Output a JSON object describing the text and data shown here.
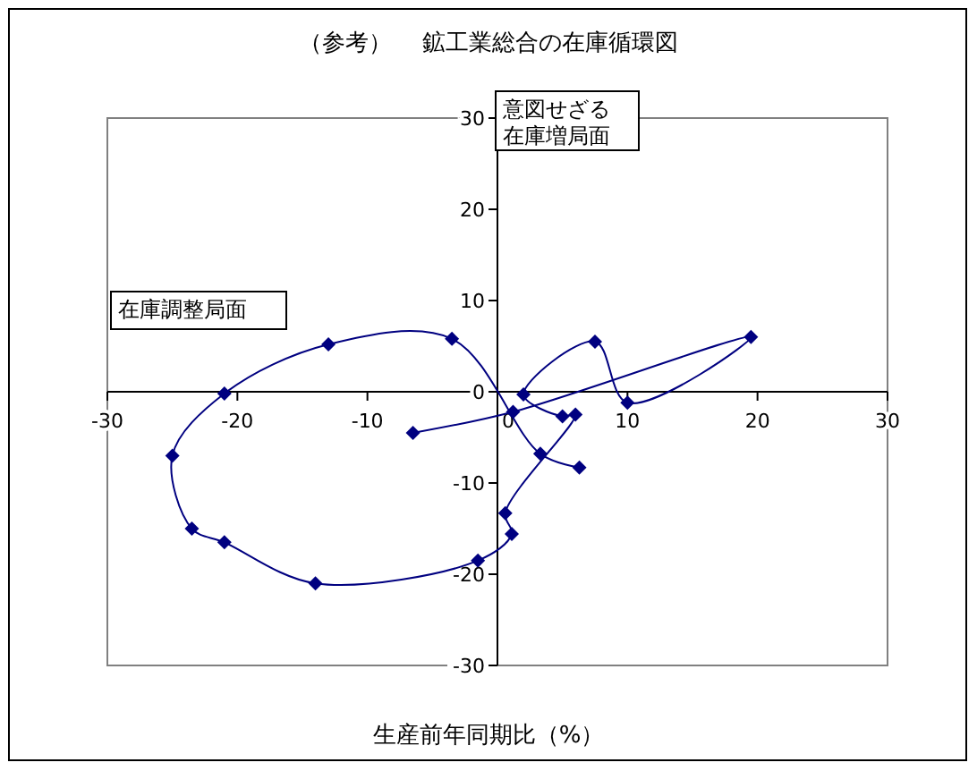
{
  "chart_data": {
    "type": "line",
    "title": "（参考）　 鉱工業総合の在庫循環図",
    "xlabel": "生産前年同期比（%）",
    "annotations": [
      "意図せざる在庫増局面",
      "在庫調整局面"
    ],
    "xlim": [
      -30,
      30
    ],
    "ylim": [
      -30,
      30
    ],
    "xticks": [
      -30,
      -20,
      -10,
      0,
      10,
      20,
      30
    ],
    "yticks": [
      -30,
      -20,
      -10,
      0,
      10,
      20,
      30
    ],
    "grid": false,
    "marker": "diamond",
    "line_style": "solid",
    "series": [
      {
        "color": "#000080",
        "x": [
          -6.5,
          1.2,
          19.5,
          10,
          7.5,
          2,
          5,
          6,
          0.6,
          1.1,
          -1.5,
          -14,
          -21,
          -23.5,
          -25,
          -21,
          -13,
          -3.5,
          3.3,
          6.3
        ],
        "values": [
          -4.5,
          -2.2,
          6,
          -1.2,
          5.5,
          -0.3,
          -2.7,
          -2.5,
          -13.3,
          -15.6,
          -18.5,
          -21,
          -16.5,
          -15,
          -7,
          -0.2,
          5.2,
          5.8,
          -6.8,
          -8.3
        ]
      }
    ]
  }
}
